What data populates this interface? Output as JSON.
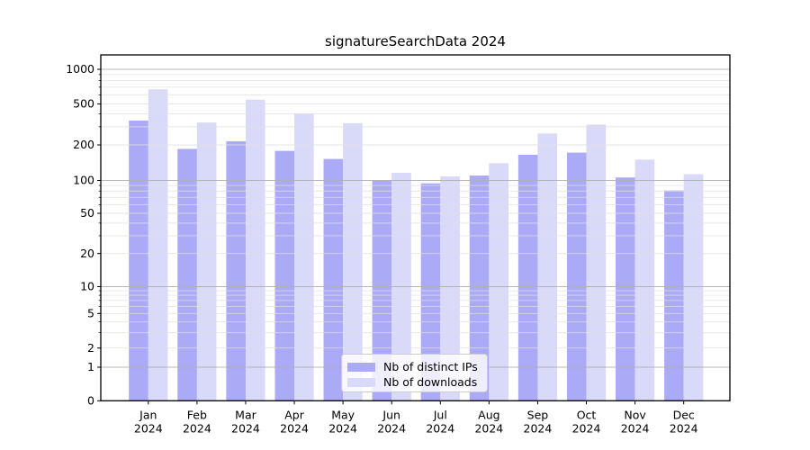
{
  "page": {
    "background": "#ffffff"
  },
  "chart_data": {
    "type": "bar",
    "title": "signatureSearchData 2024",
    "categories": [
      "Jan",
      "Feb",
      "Mar",
      "Apr",
      "May",
      "Jun",
      "Jul",
      "Aug",
      "Sep",
      "Oct",
      "Nov",
      "Dec"
    ],
    "category_year": "2024",
    "series": [
      {
        "name": "Nb of distinct IPs",
        "color": "#aaaaf7",
        "values": [
          345,
          185,
          217,
          178,
          152,
          100,
          94,
          110,
          165,
          172,
          106,
          81
        ]
      },
      {
        "name": "Nb of downloads",
        "color": "#d9d9f9",
        "values": [
          670,
          330,
          545,
          405,
          325,
          116,
          108,
          140,
          258,
          315,
          150,
          113
        ]
      }
    ],
    "xlabel": "",
    "ylabel": "",
    "yscale": "symlog",
    "yticks": [
      0,
      1,
      2,
      5,
      10,
      20,
      50,
      100,
      200,
      500,
      1000
    ],
    "ylim": [
      0,
      1300
    ],
    "grid": true,
    "legend_position": "lower center inside",
    "style": {
      "grid_major_color": "#b0b0b0",
      "grid_minor_color": "#e0e0e0",
      "axis_color": "#000000",
      "text_color": "#000000"
    }
  }
}
